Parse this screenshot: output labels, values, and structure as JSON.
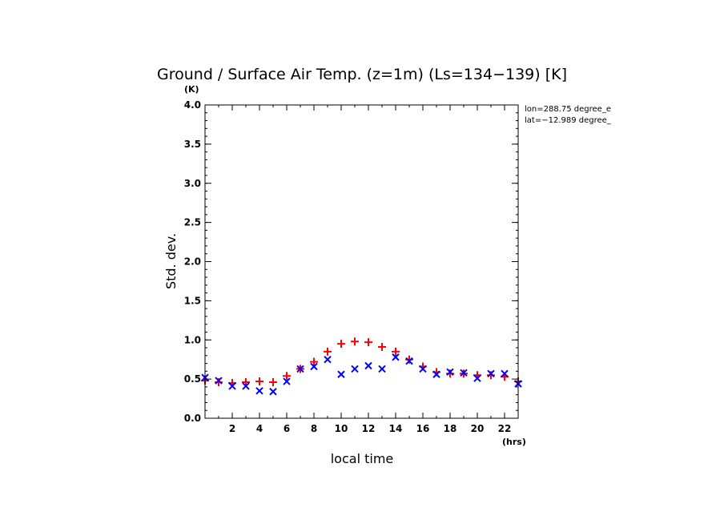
{
  "chart_data": {
    "type": "scatter",
    "title": "Ground / Surface Air Temp. (z=1m) (Ls=134−139) [K]",
    "xlabel": "local time",
    "ylabel": "Std. dev.",
    "x_unit": "(hrs)",
    "y_unit": "(K)",
    "xlim": [
      0,
      23
    ],
    "ylim": [
      0,
      4.0
    ],
    "x_ticks": [
      2,
      4,
      6,
      8,
      10,
      12,
      14,
      16,
      18,
      20,
      22
    ],
    "x_tick_labels": [
      "2",
      "4",
      "6",
      "8",
      "10",
      "12",
      "14",
      "16",
      "18",
      "20",
      "22"
    ],
    "y_ticks": [
      0,
      0.5,
      1.0,
      1.5,
      2.0,
      2.5,
      3.0,
      3.5,
      4.0
    ],
    "y_tick_labels": [
      "0.0",
      "0.5",
      "1.0",
      "1.5",
      "2.0",
      "2.5",
      "3.0",
      "3.5",
      "4.0"
    ],
    "grid": false,
    "annotations": [
      "lon=288.75 degree_e",
      "lat=−12.989 degree_"
    ],
    "series": [
      {
        "marker": "plus",
        "color": "#ff0000",
        "x": [
          0,
          1,
          2,
          3,
          4,
          5,
          6,
          7,
          8,
          9,
          10,
          11,
          12,
          13,
          14,
          15,
          16,
          17,
          18,
          19,
          20,
          21,
          22,
          23
        ],
        "values": [
          0.48,
          0.46,
          0.45,
          0.46,
          0.47,
          0.46,
          0.54,
          0.63,
          0.72,
          0.85,
          0.95,
          0.98,
          0.97,
          0.91,
          0.85,
          0.75,
          0.66,
          0.59,
          0.57,
          0.57,
          0.55,
          0.55,
          0.53,
          0.47
        ]
      },
      {
        "marker": "x",
        "color": "#0000ff",
        "x": [
          0,
          1,
          2,
          3,
          4,
          5,
          6,
          7,
          8,
          9,
          10,
          11,
          12,
          13,
          14,
          15,
          16,
          17,
          18,
          19,
          20,
          21,
          22,
          23
        ],
        "values": [
          0.52,
          0.48,
          0.41,
          0.41,
          0.35,
          0.34,
          0.47,
          0.63,
          0.66,
          0.75,
          0.56,
          0.63,
          0.67,
          0.63,
          0.78,
          0.73,
          0.63,
          0.56,
          0.59,
          0.58,
          0.51,
          0.57,
          0.57,
          0.44
        ]
      }
    ]
  }
}
